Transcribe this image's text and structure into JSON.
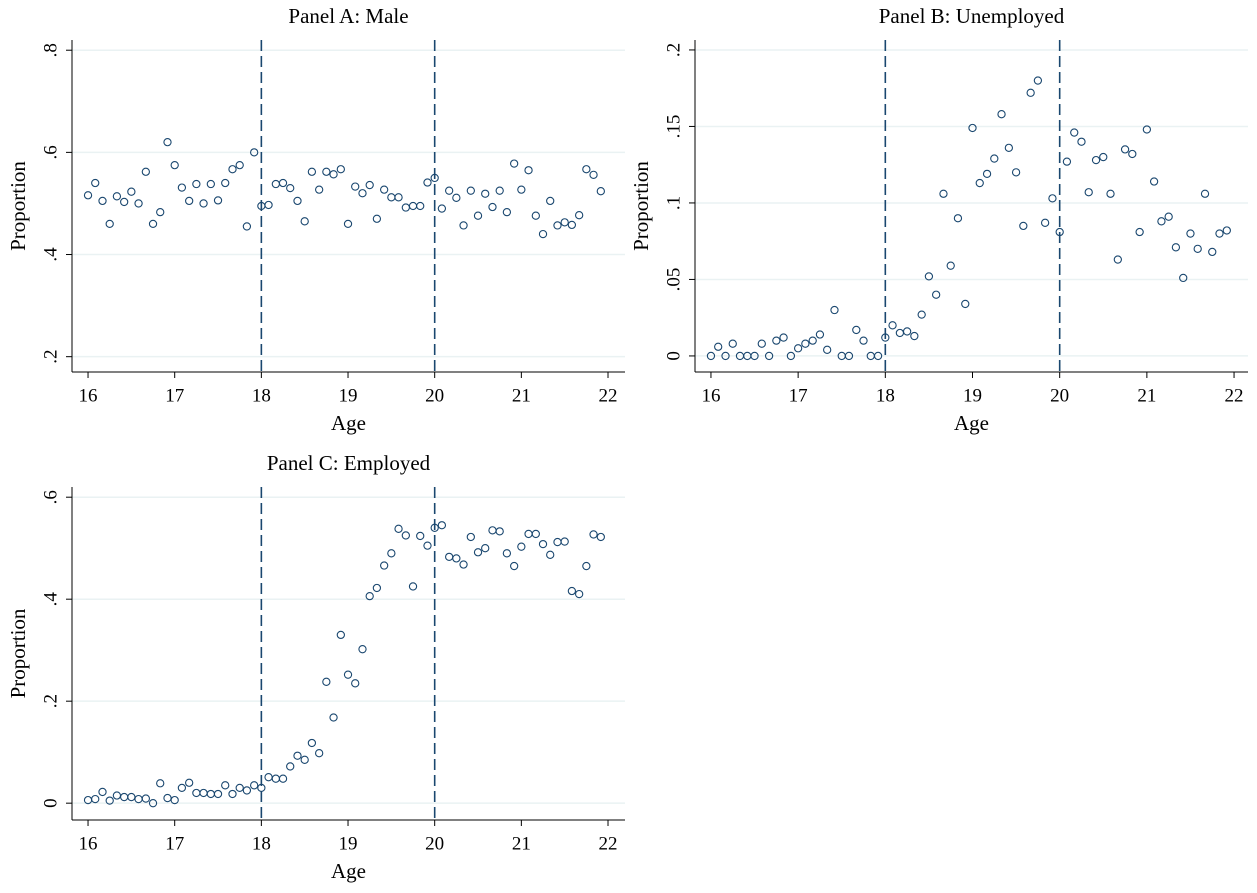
{
  "chart_data": [
    {
      "type": "scatter",
      "title": "Panel A: Male",
      "x_label": "Age",
      "y_label": "Proportion",
      "color": "#1a476f",
      "grid": true,
      "vlines": [
        18,
        20
      ],
      "xlim": [
        15.815,
        22.196
      ],
      "ylim": [
        0.17,
        0.82
      ],
      "xticks": [
        16,
        17,
        18,
        19,
        20,
        21,
        22
      ],
      "yticks": [
        {
          "value": 0.2,
          "label": ".2"
        },
        {
          "value": 0.4,
          "label": ".4"
        },
        {
          "value": 0.6,
          "label": ".6"
        },
        {
          "value": 0.8,
          "label": ".8"
        }
      ],
      "x": [
        16,
        16.083,
        16.167,
        16.25,
        16.333,
        16.417,
        16.5,
        16.583,
        16.667,
        16.75,
        16.833,
        16.917,
        17,
        17.083,
        17.167,
        17.25,
        17.333,
        17.417,
        17.5,
        17.583,
        17.667,
        17.75,
        17.833,
        17.917,
        18,
        18.083,
        18.167,
        18.25,
        18.333,
        18.417,
        18.5,
        18.583,
        18.667,
        18.75,
        18.833,
        18.917,
        19,
        19.083,
        19.167,
        19.25,
        19.333,
        19.417,
        19.5,
        19.583,
        19.667,
        19.75,
        19.833,
        19.917,
        20,
        20.083,
        20.167,
        20.25,
        20.333,
        20.417,
        20.5,
        20.583,
        20.667,
        20.75,
        20.833,
        20.917,
        21,
        21.083,
        21.167,
        21.25,
        21.333,
        21.417,
        21.5,
        21.583,
        21.667,
        21.75,
        21.833,
        21.917
      ],
      "values": [
        0.516,
        0.54,
        0.505,
        0.46,
        0.514,
        0.503,
        0.523,
        0.5,
        0.562,
        0.46,
        0.483,
        0.62,
        0.575,
        0.531,
        0.505,
        0.538,
        0.5,
        0.538,
        0.506,
        0.54,
        0.567,
        0.575,
        0.455,
        0.6,
        0.495,
        0.497,
        0.538,
        0.54,
        0.53,
        0.505,
        0.465,
        0.562,
        0.527,
        0.562,
        0.557,
        0.567,
        0.46,
        0.533,
        0.52,
        0.536,
        0.47,
        0.527,
        0.512,
        0.512,
        0.492,
        0.495,
        0.495,
        0.541,
        0.55,
        0.49,
        0.525,
        0.511,
        0.457,
        0.525,
        0.476,
        0.519,
        0.493,
        0.525,
        0.483,
        0.578,
        0.527,
        0.565,
        0.476,
        0.44,
        0.505,
        0.457,
        0.463,
        0.458,
        0.477,
        0.567,
        0.556,
        0.524
      ]
    },
    {
      "type": "scatter",
      "title": "Panel B: Unemployed",
      "x_label": "Age",
      "y_label": "Proportion",
      "color": "#1a476f",
      "grid": true,
      "vlines": [
        18,
        20
      ],
      "xlim": [
        15.817,
        22.16
      ],
      "ylim": [
        -0.0105,
        0.2065
      ],
      "xticks": [
        16,
        17,
        18,
        19,
        20,
        21,
        22
      ],
      "yticks": [
        0,
        {
          "value": 0.05,
          "label": ".05"
        },
        {
          "value": 0.1,
          "label": ".1"
        },
        {
          "value": 0.15,
          "label": ".15"
        },
        {
          "value": 0.2,
          "label": ".2"
        }
      ],
      "x": [
        16,
        16.083,
        16.167,
        16.25,
        16.333,
        16.417,
        16.5,
        16.583,
        16.667,
        16.75,
        16.833,
        16.917,
        17,
        17.083,
        17.167,
        17.25,
        17.333,
        17.417,
        17.5,
        17.583,
        17.667,
        17.75,
        17.833,
        17.917,
        18,
        18.083,
        18.167,
        18.25,
        18.333,
        18.417,
        18.5,
        18.583,
        18.667,
        18.75,
        18.833,
        18.917,
        19,
        19.083,
        19.167,
        19.25,
        19.333,
        19.417,
        19.5,
        19.583,
        19.667,
        19.75,
        19.833,
        19.917,
        20,
        20.083,
        20.167,
        20.25,
        20.333,
        20.417,
        20.5,
        20.583,
        20.667,
        20.75,
        20.833,
        20.917,
        21,
        21.083,
        21.167,
        21.25,
        21.333,
        21.417,
        21.5,
        21.583,
        21.667,
        21.75,
        21.833,
        21.917
      ],
      "values": [
        0,
        0.006,
        0,
        0.008,
        0,
        0,
        0,
        0.008,
        0,
        0.01,
        0.012,
        0,
        0.005,
        0.008,
        0.01,
        0.014,
        0.004,
        0.03,
        0,
        0,
        0.017,
        0.01,
        0,
        0,
        0.012,
        0.02,
        0.015,
        0.016,
        0.013,
        0.027,
        0.052,
        0.04,
        0.106,
        0.059,
        0.09,
        0.034,
        0.149,
        0.113,
        0.119,
        0.129,
        0.158,
        0.136,
        0.12,
        0.085,
        0.172,
        0.18,
        0.087,
        0.103,
        0.081,
        0.127,
        0.146,
        0.14,
        0.107,
        0.128,
        0.13,
        0.106,
        0.063,
        0.135,
        0.132,
        0.081,
        0.148,
        0.114,
        0.088,
        0.091,
        0.071,
        0.051,
        0.08,
        0.07,
        0.106,
        0.068,
        0.08,
        0.082
      ]
    },
    {
      "type": "scatter",
      "title": "Panel C: Employed",
      "x_label": "Age",
      "y_label": "Proportion",
      "color": "#1a476f",
      "grid": true,
      "vlines": [
        18,
        20
      ],
      "xlim": [
        15.815,
        22.196
      ],
      "ylim": [
        -0.033,
        0.62
      ],
      "xticks": [
        16,
        17,
        18,
        19,
        20,
        21,
        22
      ],
      "yticks": [
        0,
        {
          "value": 0.2,
          "label": ".2"
        },
        {
          "value": 0.4,
          "label": ".4"
        },
        {
          "value": 0.6,
          "label": ".6"
        }
      ],
      "x": [
        16,
        16.083,
        16.167,
        16.25,
        16.333,
        16.417,
        16.5,
        16.583,
        16.667,
        16.75,
        16.833,
        16.917,
        17,
        17.083,
        17.167,
        17.25,
        17.333,
        17.417,
        17.5,
        17.583,
        17.667,
        17.75,
        17.833,
        17.917,
        18,
        18.083,
        18.167,
        18.25,
        18.333,
        18.417,
        18.5,
        18.583,
        18.667,
        18.75,
        18.833,
        18.917,
        19,
        19.083,
        19.167,
        19.25,
        19.333,
        19.417,
        19.5,
        19.583,
        19.667,
        19.75,
        19.833,
        19.917,
        20,
        20.083,
        20.167,
        20.25,
        20.333,
        20.417,
        20.5,
        20.583,
        20.667,
        20.75,
        20.833,
        20.917,
        21,
        21.083,
        21.167,
        21.25,
        21.333,
        21.417,
        21.5,
        21.583,
        21.667,
        21.75,
        21.833,
        21.917
      ],
      "values": [
        0.006,
        0.008,
        0.022,
        0.005,
        0.015,
        0.012,
        0.012,
        0.008,
        0.009,
        0,
        0.039,
        0.01,
        0.006,
        0.03,
        0.04,
        0.02,
        0.02,
        0.018,
        0.018,
        0.035,
        0.018,
        0.03,
        0.025,
        0.035,
        0.03,
        0.051,
        0.048,
        0.048,
        0.072,
        0.093,
        0.085,
        0.118,
        0.098,
        0.238,
        0.168,
        0.33,
        0.252,
        0.235,
        0.302,
        0.406,
        0.422,
        0.466,
        0.49,
        0.538,
        0.525,
        0.425,
        0.524,
        0.505,
        0.54,
        0.545,
        0.483,
        0.48,
        0.468,
        0.522,
        0.492,
        0.5,
        0.535,
        0.533,
        0.49,
        0.465,
        0.503,
        0.528,
        0.528,
        0.508,
        0.487,
        0.512,
        0.513,
        0.416,
        0.41,
        0.465,
        0.527,
        0.522
      ]
    }
  ]
}
